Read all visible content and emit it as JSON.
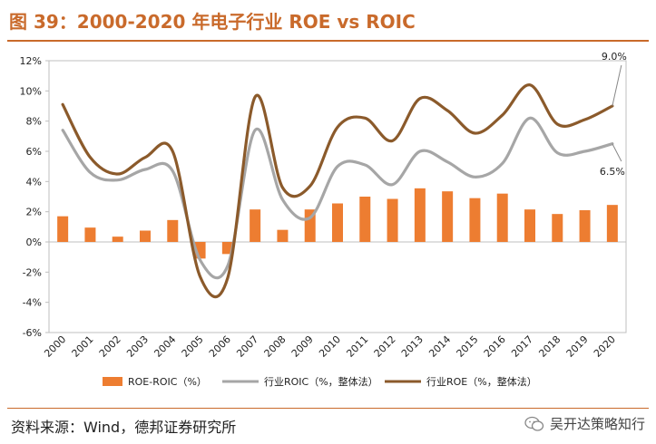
{
  "figure": {
    "title": "图 39：2000-2020 年电子行业 ROE vs ROIC",
    "source": "资料来源：Wind，德邦证券研究所",
    "brand": "吴开达策略知行"
  },
  "colors": {
    "title": "#c96a2b",
    "bar": "#ed7d31",
    "roic_line": "#a6a6a6",
    "roe_line": "#8b5a2b"
  },
  "chart_data": {
    "type": "bar+line",
    "title": "",
    "xlabel": "",
    "ylabel": "",
    "ylim": [
      -6,
      12
    ],
    "yticks": [
      -6,
      -4,
      -2,
      0,
      2,
      4,
      6,
      8,
      10,
      12
    ],
    "ytick_labels": [
      "-6%",
      "-4%",
      "-2%",
      "0%",
      "2%",
      "4%",
      "6%",
      "8%",
      "10%",
      "12%"
    ],
    "categories": [
      "2000",
      "2001",
      "2002",
      "2003",
      "2004",
      "2005",
      "2006",
      "2007",
      "2008",
      "2009",
      "2010",
      "2011",
      "2012",
      "2013",
      "2014",
      "2015",
      "2016",
      "2017",
      "2018",
      "2019",
      "2020"
    ],
    "series": [
      {
        "name": "ROE-ROIC（%）",
        "kind": "bar",
        "values": [
          1.7,
          0.95,
          0.35,
          0.75,
          1.45,
          -1.1,
          -0.8,
          2.15,
          0.8,
          2.15,
          2.55,
          3.0,
          2.85,
          3.55,
          3.35,
          2.9,
          3.2,
          2.15,
          1.85,
          2.1,
          2.45
        ]
      },
      {
        "name": "行业ROIC（%，整体法）",
        "kind": "line",
        "values": [
          7.4,
          4.6,
          4.1,
          4.8,
          4.7,
          -1.2,
          -1.6,
          7.4,
          2.8,
          1.6,
          5.0,
          5.1,
          3.8,
          6.0,
          5.3,
          4.3,
          5.2,
          8.2,
          5.9,
          6.0,
          6.5
        ]
      },
      {
        "name": "行业ROE（%，整体法）",
        "kind": "line",
        "values": [
          9.1,
          5.6,
          4.5,
          5.6,
          6.0,
          -2.3,
          -2.4,
          9.6,
          3.6,
          3.7,
          7.6,
          8.2,
          6.7,
          9.5,
          8.7,
          7.2,
          8.4,
          10.4,
          7.8,
          8.1,
          9.0
        ]
      }
    ],
    "annotations": [
      "9.0%",
      "6.5%"
    ],
    "legend_position": "bottom"
  }
}
